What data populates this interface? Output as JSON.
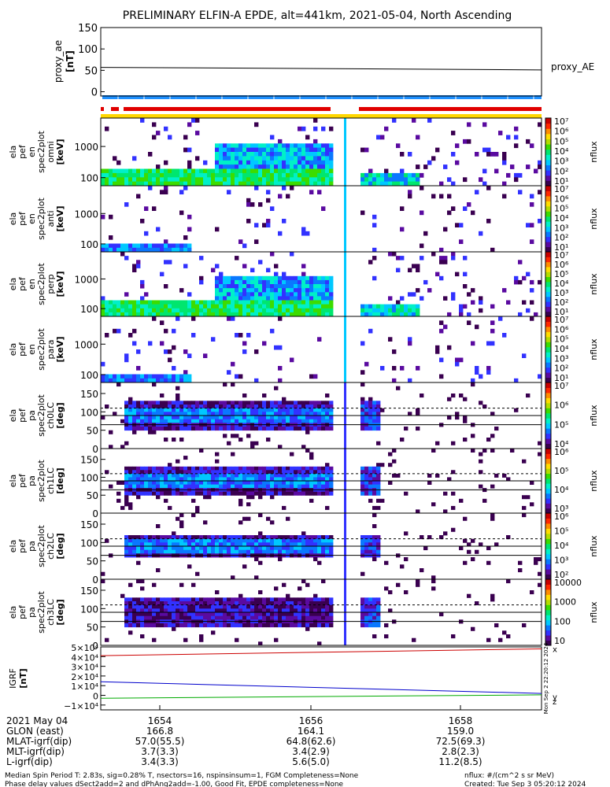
{
  "title": "PRELIMINARY ELFIN-A EPDE, alt=441km, 2021-05-04, North Ascending",
  "colors": {
    "mode_red": "#e00000",
    "mode_blue": "#1e90ff",
    "flag_yellow": "#ffd700",
    "bx": "#cc0000",
    "by": "#0000cc",
    "bz": "#00aa00",
    "ae": "#000000"
  },
  "colormap": [
    "#ffffff",
    "#3a0050",
    "#5a0aa0",
    "#3232ff",
    "#0a78ff",
    "#00c8ff",
    "#00f0c8",
    "#00e66e",
    "#3cdc00",
    "#b4dc00",
    "#ffdc00",
    "#ff8c00",
    "#ff2800",
    "#c80000"
  ],
  "chart_data": [
    {
      "type": "line",
      "panel": "proxy_ae",
      "ylabel": "proxy_ae [nT]",
      "ylim": [
        -10,
        150
      ],
      "yticks": [
        "150",
        "100",
        "50",
        "0"
      ],
      "series": [
        {
          "name": "proxy_AE",
          "x": [
            "16:52:30",
            "16:59:50"
          ],
          "values": [
            57,
            51
          ]
        }
      ]
    },
    {
      "type": "heatmap",
      "panel": "ela_pef_en_spec2plot_omni",
      "ylabel": "ela pef en spec2plot omni [keV]",
      "yscale": "log",
      "yticks": [
        "1000",
        "100"
      ],
      "colorbar": {
        "label": "nflux",
        "ticks": [
          "10^7",
          "10^6",
          "10^5",
          "10^4",
          "10^3",
          "10^2",
          "10^1"
        ]
      }
    },
    {
      "type": "heatmap",
      "panel": "ela_pef_en_spec2plot_anti",
      "ylabel": "ela pef en spec2plot anti [keV]",
      "yscale": "log",
      "yticks": [
        "1000",
        "100"
      ],
      "colorbar": {
        "label": "nflux",
        "ticks": [
          "10^7",
          "10^6",
          "10^5",
          "10^4",
          "10^3",
          "10^2",
          "10^1"
        ]
      }
    },
    {
      "type": "heatmap",
      "panel": "ela_pef_en_spec2plot_perp",
      "ylabel": "ela pef en spec2plot perp [keV]",
      "yscale": "log",
      "yticks": [
        "1000",
        "100"
      ],
      "colorbar": {
        "label": "nflux",
        "ticks": [
          "10^7",
          "10^6",
          "10^5",
          "10^4",
          "10^3",
          "10^2",
          "10^1"
        ]
      }
    },
    {
      "type": "heatmap",
      "panel": "ela_pef_en_spec2plot_para",
      "ylabel": "ela pef en spec2plot para [keV]",
      "yscale": "log",
      "yticks": [
        "1000",
        "100"
      ],
      "colorbar": {
        "label": "nflux",
        "ticks": [
          "10^7",
          "10^6",
          "10^5",
          "10^4",
          "10^3",
          "10^2",
          "10^1"
        ]
      }
    },
    {
      "type": "heatmap",
      "panel": "ela_pef_pa_spec2plot_ch0LC",
      "ylabel": "ela pef pa spec2plot ch0LC [deg]",
      "ylim": [
        0,
        180
      ],
      "yticks": [
        "150",
        "100",
        "50",
        "0"
      ],
      "colorbar": {
        "label": "nflux",
        "ticks": [
          "10^7",
          "10^6",
          "10^5",
          "10^4"
        ]
      }
    },
    {
      "type": "heatmap",
      "panel": "ela_pef_pa_spec2plot_ch1LC",
      "ylabel": "ela pef pa spec2plot ch1LC [deg]",
      "ylim": [
        0,
        180
      ],
      "yticks": [
        "150",
        "100",
        "50",
        "0"
      ],
      "colorbar": {
        "label": "nflux",
        "ticks": [
          "10^6",
          "10^5",
          "10^4",
          "10^3"
        ]
      }
    },
    {
      "type": "heatmap",
      "panel": "ela_pef_pa_spec2plot_ch2LC",
      "ylabel": "ela pef pa spec2plot ch2LC [deg]",
      "ylim": [
        0,
        180
      ],
      "yticks": [
        "150",
        "100",
        "50",
        "0"
      ],
      "colorbar": {
        "label": "nflux",
        "ticks": [
          "10^6",
          "10^5",
          "10^4",
          "10^3",
          "10^2"
        ]
      }
    },
    {
      "type": "heatmap",
      "panel": "ela_pef_pa_spec2plot_ch3LC",
      "ylabel": "ela pef pa spec2plot ch3LC [deg]",
      "ylim": [
        0,
        180
      ],
      "yticks": [
        "150",
        "100",
        "50",
        "0"
      ],
      "colorbar": {
        "label": "nflux",
        "ticks": [
          "10000",
          "1000",
          "100",
          "10"
        ]
      }
    },
    {
      "type": "line",
      "panel": "igrf",
      "ylabel": "IGRF [nT]",
      "ylim": [
        -15000,
        50000
      ],
      "yticks": [
        "5×10^4",
        "4×10^4",
        "3×10^4",
        "2×10^4",
        "1×10^4",
        "0",
        "−1×10^4"
      ],
      "series": [
        {
          "name": "x",
          "x": [
            "16:52:30",
            "16:59:50"
          ],
          "values": [
            41000,
            48000
          ]
        },
        {
          "name": "y",
          "x": [
            "16:52:30",
            "16:59:50"
          ],
          "values": [
            14000,
            2000
          ]
        },
        {
          "name": "z",
          "x": [
            "16:52:30",
            "16:59:50"
          ],
          "values": [
            -3000,
            500
          ]
        }
      ],
      "side_text": "Mon Sep  2 22:20:12 2024"
    }
  ],
  "axis": {
    "labels": [
      "2021 May 04",
      "GLON (east)",
      "MLAT-igrf(dip)",
      "MLT-igrf(dip)",
      "L-igrf(dip)"
    ],
    "columns": [
      {
        "time": "1654",
        "glon": "166.8",
        "mlat": "57.0(55.5)",
        "mlt": "3.7(3.3)",
        "l": "3.4(3.3)"
      },
      {
        "time": "1656",
        "glon": "164.1",
        "mlat": "64.8(62.6)",
        "mlt": "3.4(2.9)",
        "l": "5.6(5.0)"
      },
      {
        "time": "1658",
        "glon": "159.0",
        "mlat": "72.5(69.3)",
        "mlt": "2.8(2.3)",
        "l": "11.2(8.5)"
      }
    ]
  },
  "footer": {
    "line1": "Median Spin Period T: 2.83s, sig=0.28% T, nsectors=16, nspinsinsum=1, FGM Completeness=None",
    "line2": "Phase delay values dSect2add=2 and dPhAng2add=-1.00, Good Fit, EPDE completeness=None",
    "units": "nflux: #/(cm^2 s sr MeV)",
    "created": "Created: Tue Sep  3 05:20:12 2024"
  }
}
